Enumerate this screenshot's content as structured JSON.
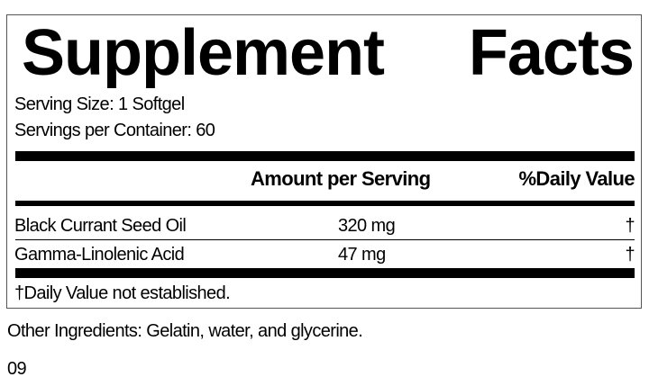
{
  "title": {
    "word1": "Supplement",
    "word2": "Facts"
  },
  "serving_size": "Serving Size: 1 Softgel",
  "servings_per_container": "Servings per Container: 60",
  "headers": {
    "amount": "Amount per Serving",
    "dv": "%Daily Value"
  },
  "rows": [
    {
      "name": "Black Currant Seed Oil",
      "amount": "320 mg",
      "dv": "†"
    },
    {
      "name": "Gamma-Linolenic Acid",
      "amount": "47 mg",
      "dv": "†"
    }
  ],
  "footnote": "†Daily Value not established.",
  "other_ingredients": "Other Ingredients: Gelatin, water, and glycerine.",
  "code": "09"
}
